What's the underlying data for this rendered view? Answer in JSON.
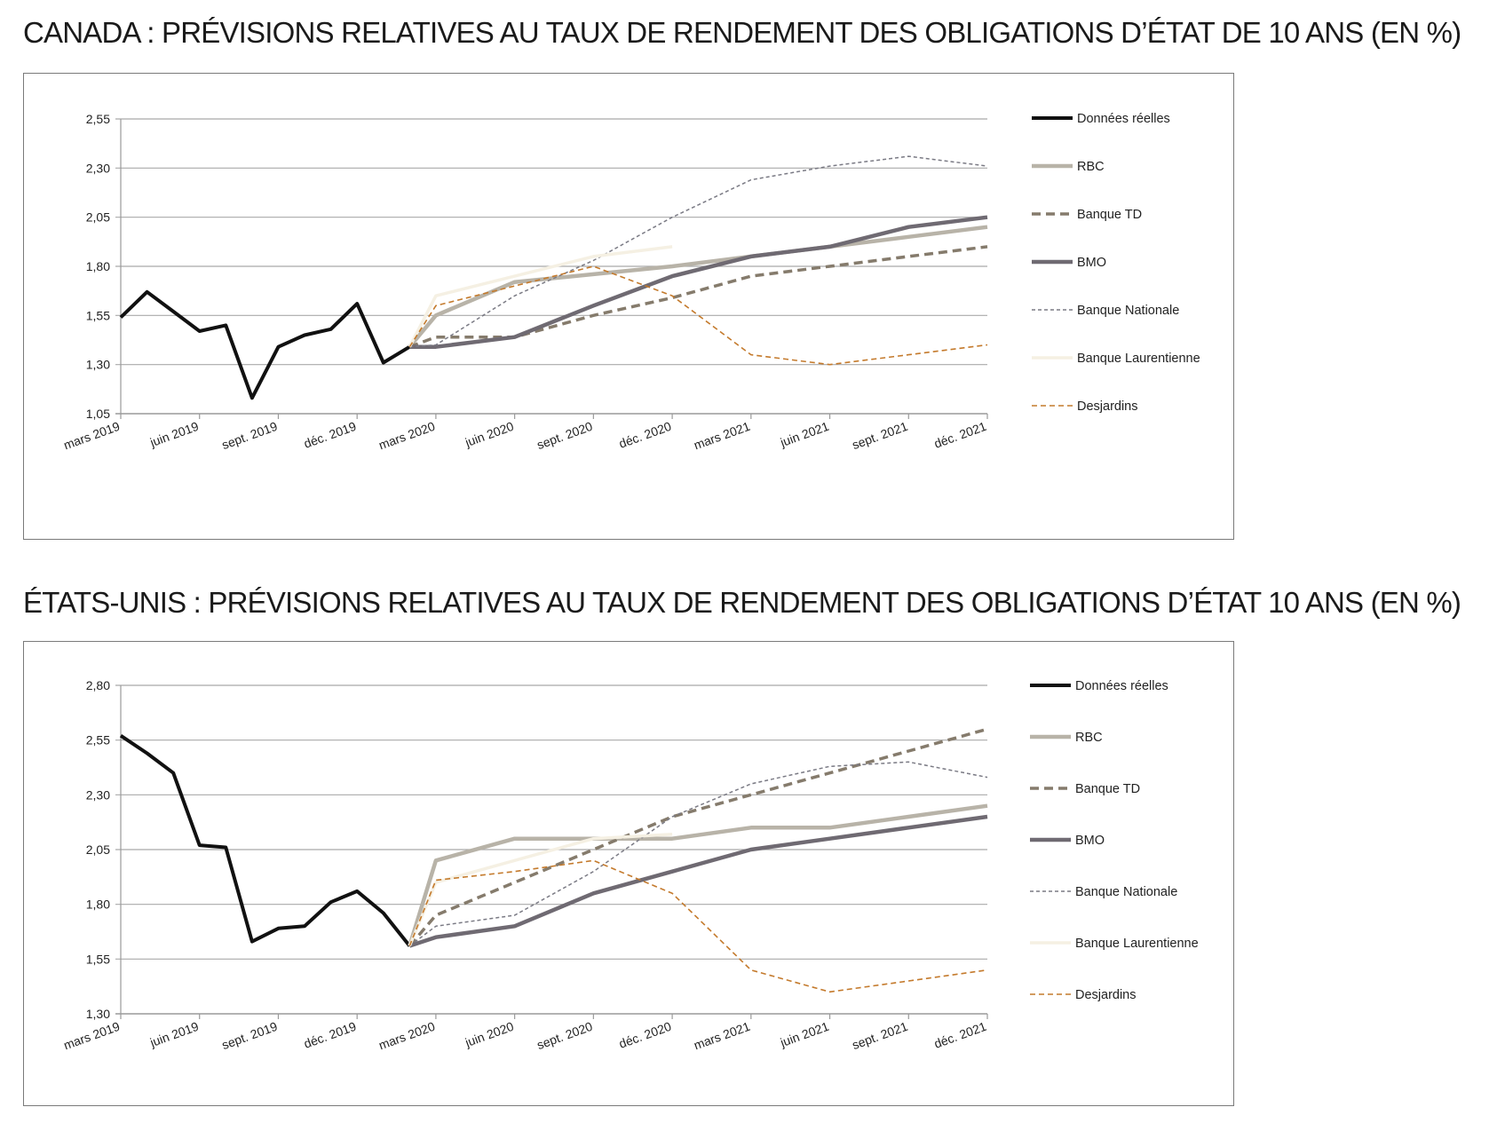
{
  "chart_data": [
    {
      "id": "canada",
      "type": "line",
      "title": "CANADA : PRÉVISIONS RELATIVES AU TAUX DE RENDEMENT DES OBLIGATIONS D’ÉTAT DE 10 ANS (EN %)",
      "xlabel": "",
      "ylabel": "",
      "x_ticks": [
        "mars 2019",
        "juin 2019",
        "sept. 2019",
        "déc. 2019",
        "mars 2020",
        "juin 2020",
        "sept. 2020",
        "déc. 2020",
        "mars 2021",
        "juin 2021",
        "sept. 2021",
        "déc. 2021"
      ],
      "y_ticks": [
        "1,05",
        "1,30",
        "1,55",
        "1,80",
        "2,05",
        "2,30",
        "2,55"
      ],
      "ylim": [
        1.05,
        2.55
      ],
      "grid": "horizontal",
      "legend_position": "right",
      "series": [
        {
          "name": "Données réelles",
          "color": "#111111",
          "width": 4,
          "dash": "",
          "points": [
            [
              0,
              1.54
            ],
            [
              1,
              1.67
            ],
            [
              2,
              1.57
            ],
            [
              3,
              1.47
            ],
            [
              4,
              1.5
            ],
            [
              5,
              1.13
            ],
            [
              6,
              1.39
            ],
            [
              7,
              1.45
            ],
            [
              8,
              1.48
            ],
            [
              9,
              1.61
            ],
            [
              10,
              1.31
            ],
            [
              11,
              1.39
            ]
          ]
        },
        {
          "name": "RBC",
          "color": "#b8b3a8",
          "width": 4.5,
          "dash": "",
          "points": [
            [
              11,
              1.39
            ],
            [
              12,
              1.55
            ],
            [
              15,
              1.72
            ],
            [
              18,
              1.76
            ],
            [
              21,
              1.8
            ],
            [
              24,
              1.85
            ],
            [
              27,
              1.9
            ],
            [
              30,
              1.95
            ],
            [
              33,
              2.0
            ]
          ]
        },
        {
          "name": "Banque TD",
          "color": "#857b6c",
          "width": 3.5,
          "dash": "10,6",
          "points": [
            [
              11,
              1.39
            ],
            [
              12,
              1.44
            ],
            [
              15,
              1.44
            ],
            [
              18,
              1.55
            ],
            [
              21,
              1.64
            ],
            [
              24,
              1.75
            ],
            [
              27,
              1.8
            ],
            [
              30,
              1.85
            ],
            [
              33,
              1.9
            ]
          ]
        },
        {
          "name": "BMO",
          "color": "#6f6a72",
          "width": 4.5,
          "dash": "",
          "points": [
            [
              11,
              1.39
            ],
            [
              12,
              1.39
            ],
            [
              15,
              1.44
            ],
            [
              18,
              1.6
            ],
            [
              21,
              1.75
            ],
            [
              24,
              1.85
            ],
            [
              27,
              1.9
            ],
            [
              30,
              2.0
            ],
            [
              33,
              2.05
            ]
          ]
        },
        {
          "name": "Banque Nationale",
          "color": "#7a7a84",
          "width": 1.5,
          "dash": "4,3",
          "points": [
            [
              11,
              1.39
            ],
            [
              12,
              1.4
            ],
            [
              15,
              1.65
            ],
            [
              18,
              1.83
            ],
            [
              21,
              2.05
            ],
            [
              24,
              2.24
            ],
            [
              27,
              2.31
            ],
            [
              30,
              2.36
            ],
            [
              33,
              2.31
            ]
          ]
        },
        {
          "name": "Banque Laurentienne",
          "color": "#f5f0e3",
          "width": 3.5,
          "dash": "",
          "points": [
            [
              11,
              1.39
            ],
            [
              12,
              1.65
            ],
            [
              15,
              1.75
            ],
            [
              18,
              1.85
            ],
            [
              21,
              1.9
            ]
          ]
        },
        {
          "name": "Desjardins",
          "color": "#c47a2c",
          "width": 1.6,
          "dash": "6,4",
          "points": [
            [
              11,
              1.39
            ],
            [
              12,
              1.6
            ],
            [
              15,
              1.7
            ],
            [
              18,
              1.8
            ],
            [
              21,
              1.65
            ],
            [
              24,
              1.35
            ],
            [
              27,
              1.3
            ],
            [
              30,
              1.35
            ],
            [
              33,
              1.4
            ]
          ]
        }
      ]
    },
    {
      "id": "us",
      "type": "line",
      "title": "ÉTATS-UNIS : PRÉVISIONS RELATIVES AU TAUX DE RENDEMENT DES OBLIGATIONS D’ÉTAT 10 ANS (EN %)",
      "xlabel": "",
      "ylabel": "",
      "x_ticks": [
        "mars 2019",
        "juin 2019",
        "sept. 2019",
        "déc. 2019",
        "mars 2020",
        "juin 2020",
        "sept. 2020",
        "déc. 2020",
        "mars 2021",
        "juin 2021",
        "sept. 2021",
        "déc. 2021"
      ],
      "y_ticks": [
        "1,30",
        "1,55",
        "1,80",
        "2,05",
        "2,30",
        "2,55",
        "2,80"
      ],
      "ylim": [
        1.3,
        2.8
      ],
      "grid": "horizontal",
      "legend_position": "right",
      "series": [
        {
          "name": "Données réelles",
          "color": "#111111",
          "width": 4,
          "dash": "",
          "points": [
            [
              0,
              2.57
            ],
            [
              1,
              2.49
            ],
            [
              2,
              2.4
            ],
            [
              3,
              2.07
            ],
            [
              4,
              2.06
            ],
            [
              5,
              1.63
            ],
            [
              6,
              1.69
            ],
            [
              7,
              1.7
            ],
            [
              8,
              1.81
            ],
            [
              9,
              1.86
            ],
            [
              10,
              1.76
            ],
            [
              11,
              1.61
            ]
          ]
        },
        {
          "name": "RBC",
          "color": "#b8b3a8",
          "width": 4.5,
          "dash": "",
          "points": [
            [
              11,
              1.61
            ],
            [
              12,
              2.0
            ],
            [
              15,
              2.1
            ],
            [
              18,
              2.1
            ],
            [
              21,
              2.1
            ],
            [
              24,
              2.15
            ],
            [
              27,
              2.15
            ],
            [
              30,
              2.2
            ],
            [
              33,
              2.25
            ]
          ]
        },
        {
          "name": "Banque TD",
          "color": "#857b6c",
          "width": 3.5,
          "dash": "10,6",
          "points": [
            [
              11,
              1.61
            ],
            [
              12,
              1.75
            ],
            [
              15,
              1.9
            ],
            [
              18,
              2.05
            ],
            [
              21,
              2.2
            ],
            [
              24,
              2.3
            ],
            [
              27,
              2.4
            ],
            [
              30,
              2.5
            ],
            [
              33,
              2.6
            ]
          ]
        },
        {
          "name": "BMO",
          "color": "#6f6a72",
          "width": 4.5,
          "dash": "",
          "points": [
            [
              11,
              1.61
            ],
            [
              12,
              1.65
            ],
            [
              15,
              1.7
            ],
            [
              18,
              1.85
            ],
            [
              21,
              1.95
            ],
            [
              24,
              2.05
            ],
            [
              27,
              2.1
            ],
            [
              30,
              2.15
            ],
            [
              33,
              2.2
            ]
          ]
        },
        {
          "name": "Banque Nationale",
          "color": "#7a7a84",
          "width": 1.5,
          "dash": "4,3",
          "points": [
            [
              11,
              1.61
            ],
            [
              12,
              1.7
            ],
            [
              15,
              1.75
            ],
            [
              18,
              1.95
            ],
            [
              21,
              2.2
            ],
            [
              24,
              2.35
            ],
            [
              27,
              2.43
            ],
            [
              30,
              2.45
            ],
            [
              33,
              2.38
            ]
          ]
        },
        {
          "name": "Banque Laurentienne",
          "color": "#f5f0e3",
          "width": 3.5,
          "dash": "",
          "points": [
            [
              11,
              1.61
            ],
            [
              12,
              1.9
            ],
            [
              15,
              2.0
            ],
            [
              18,
              2.1
            ],
            [
              21,
              2.12
            ]
          ]
        },
        {
          "name": "Desjardins",
          "color": "#c47a2c",
          "width": 1.6,
          "dash": "6,4",
          "points": [
            [
              11,
              1.61
            ],
            [
              12,
              1.91
            ],
            [
              15,
              1.95
            ],
            [
              18,
              2.0
            ],
            [
              21,
              1.85
            ],
            [
              24,
              1.5
            ],
            [
              27,
              1.4
            ],
            [
              30,
              1.45
            ],
            [
              33,
              1.5
            ]
          ]
        }
      ]
    }
  ]
}
